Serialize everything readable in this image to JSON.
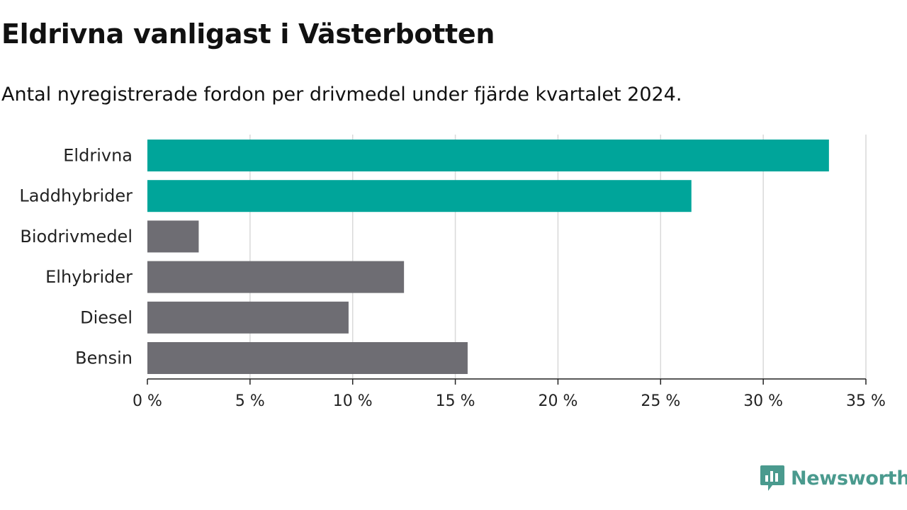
{
  "title": "Eldrivna vanligast i Västerbotten",
  "subtitle": "Antal nyregistrerade fordon per drivmedel under fjärde kvartalet 2024.",
  "brand": {
    "name": "Newsworthy",
    "color": "#4a9a8e"
  },
  "chart_data": {
    "type": "bar",
    "orientation": "horizontal",
    "categories": [
      "Eldrivna",
      "Laddhybrider",
      "Biodrivmedel",
      "Elhybrider",
      "Diesel",
      "Bensin"
    ],
    "values": [
      33.2,
      26.5,
      2.5,
      12.5,
      9.8,
      15.6
    ],
    "colors": [
      "#00a59a",
      "#00a59a",
      "#6e6d73",
      "#6e6d73",
      "#6e6d73",
      "#6e6d73"
    ],
    "xlim": [
      0,
      35
    ],
    "xticks": [
      0,
      5,
      10,
      15,
      20,
      25,
      30,
      35
    ],
    "xtick_labels": [
      "0 %",
      "5 %",
      "10 %",
      "15 %",
      "20 %",
      "25 %",
      "30 %",
      "35 %"
    ],
    "grid": true
  }
}
